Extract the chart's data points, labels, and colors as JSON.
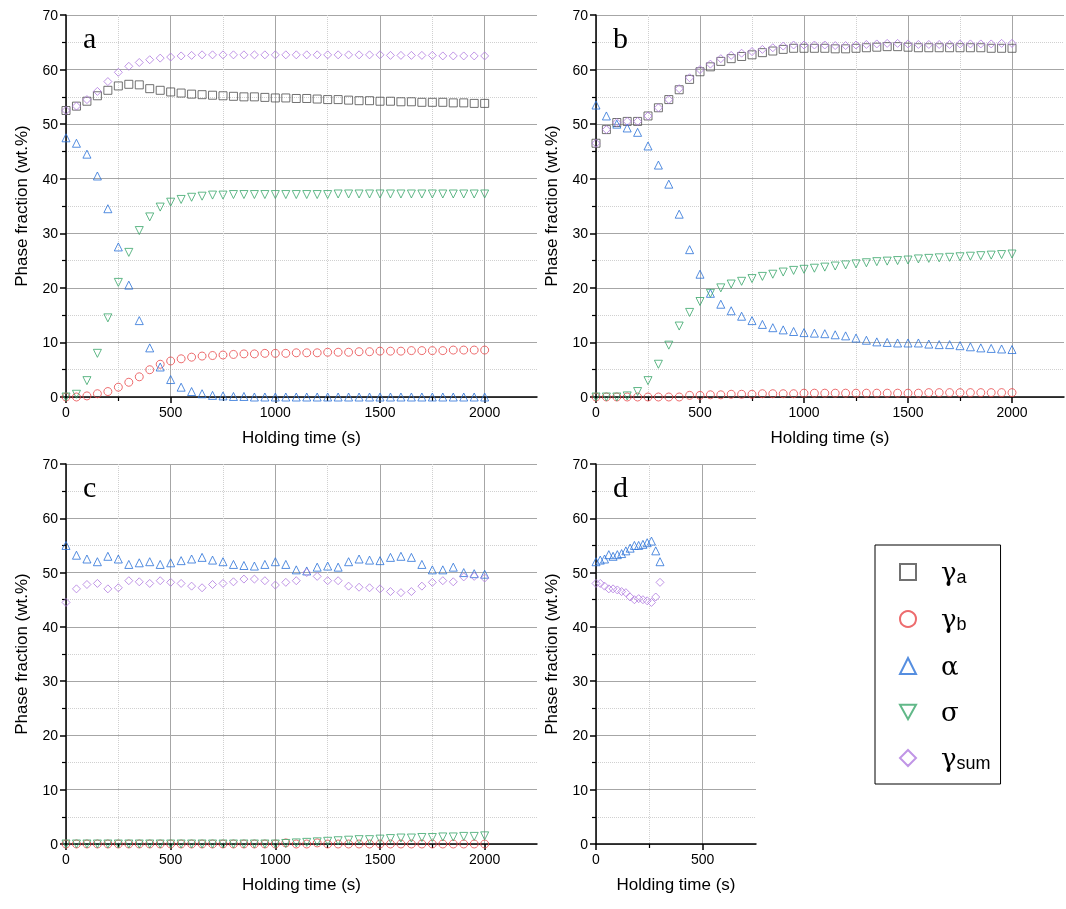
{
  "chart_data": [
    {
      "type": "scatter",
      "title": "a",
      "xlabel": "Holding time (s)",
      "ylabel": "Phase fraction (wt.%)",
      "xlim": [
        0,
        2250
      ],
      "xticks": [
        0,
        500,
        1000,
        1500,
        2000
      ],
      "ylim": [
        0,
        70
      ],
      "yticks": [
        0,
        10,
        20,
        30,
        40,
        50,
        60,
        70
      ],
      "grid": true,
      "legend": "bottom right",
      "x": [
        0,
        50,
        100,
        150,
        200,
        250,
        300,
        350,
        400,
        450,
        500,
        550,
        600,
        650,
        700,
        750,
        800,
        850,
        900,
        950,
        1000,
        1050,
        1100,
        1150,
        1200,
        1250,
        1300,
        1350,
        1400,
        1450,
        1500,
        1550,
        1600,
        1650,
        1700,
        1750,
        1800,
        1850,
        1900,
        1950,
        2000
      ],
      "series": [
        {
          "name": "γ$_{a}$",
          "color": "#4d4d4d",
          "marker": "square",
          "values": [
            52.5,
            53.3,
            54.2,
            55.2,
            56.2,
            57.0,
            57.3,
            57.2,
            56.5,
            56.2,
            55.9,
            55.7,
            55.5,
            55.4,
            55.3,
            55.2,
            55.1,
            55.0,
            55.0,
            54.9,
            54.8,
            54.8,
            54.7,
            54.7,
            54.6,
            54.5,
            54.5,
            54.4,
            54.3,
            54.3,
            54.2,
            54.2,
            54.1,
            54.1,
            54.0,
            54.0,
            54.0,
            53.9,
            53.9,
            53.8,
            53.8
          ]
        },
        {
          "name": "γ$_{b}$",
          "color": "#e8474a",
          "marker": "circle",
          "values": [
            0,
            0,
            0.2,
            0.6,
            1.0,
            1.8,
            2.7,
            3.7,
            5.0,
            6.0,
            6.6,
            7.0,
            7.3,
            7.5,
            7.6,
            7.7,
            7.8,
            7.9,
            7.9,
            8.0,
            8.0,
            8.0,
            8.1,
            8.1,
            8.1,
            8.2,
            8.2,
            8.2,
            8.3,
            8.3,
            8.4,
            8.4,
            8.4,
            8.5,
            8.5,
            8.5,
            8.5,
            8.6,
            8.6,
            8.6,
            8.6
          ]
        },
        {
          "name": "α",
          "color": "#2b72d8",
          "marker": "triangle",
          "values": [
            47.5,
            46.5,
            44.5,
            40.5,
            34.5,
            27.5,
            20.5,
            14,
            9,
            5.5,
            3.2,
            1.8,
            1.0,
            0.6,
            0.3,
            0.2,
            0.1,
            0.1,
            0,
            0,
            0,
            0,
            0,
            0,
            0,
            0,
            0,
            0,
            0,
            0,
            0,
            0,
            0,
            0,
            0,
            0,
            0,
            0,
            0,
            0,
            0
          ]
        },
        {
          "name": "σ",
          "color": "#3aa66a",
          "marker": "triangle-down",
          "values": [
            0,
            0.5,
            3,
            8,
            14.5,
            21,
            26.5,
            30.5,
            33,
            34.8,
            35.7,
            36.2,
            36.6,
            36.8,
            37.0,
            37.0,
            37.1,
            37.1,
            37.1,
            37.1,
            37.1,
            37.1,
            37.1,
            37.1,
            37.1,
            37.1,
            37.2,
            37.2,
            37.2,
            37.2,
            37.2,
            37.2,
            37.2,
            37.2,
            37.2,
            37.2,
            37.2,
            37.2,
            37.2,
            37.2,
            37.2
          ]
        },
        {
          "name": "γ$_{sum}$",
          "color": "#b07be0",
          "marker": "diamond",
          "values": [
            52.5,
            53.3,
            54.5,
            56,
            57.8,
            59.5,
            60.6,
            61.3,
            61.8,
            62.1,
            62.3,
            62.5,
            62.6,
            62.7,
            62.7,
            62.7,
            62.7,
            62.7,
            62.7,
            62.7,
            62.7,
            62.7,
            62.7,
            62.7,
            62.7,
            62.7,
            62.7,
            62.7,
            62.7,
            62.7,
            62.7,
            62.6,
            62.6,
            62.6,
            62.6,
            62.6,
            62.5,
            62.5,
            62.5,
            62.5,
            62.5
          ]
        }
      ]
    },
    {
      "type": "scatter",
      "title": "b",
      "xlabel": "Holding time (s)",
      "ylabel": "Phase fraction (wt.%)",
      "xlim": [
        0,
        2250
      ],
      "xticks": [
        0,
        500,
        1000,
        1500,
        2000
      ],
      "ylim": [
        0,
        70
      ],
      "yticks": [
        0,
        10,
        20,
        30,
        40,
        50,
        60,
        70
      ],
      "grid": true,
      "x": [
        0,
        50,
        100,
        150,
        200,
        250,
        300,
        350,
        400,
        450,
        500,
        550,
        600,
        650,
        700,
        750,
        800,
        850,
        900,
        950,
        1000,
        1050,
        1100,
        1150,
        1200,
        1250,
        1300,
        1350,
        1400,
        1450,
        1500,
        1550,
        1600,
        1650,
        1700,
        1750,
        1800,
        1850,
        1900,
        1950,
        2000
      ],
      "series": [
        {
          "color": "#4d4d4d",
          "marker": "square",
          "values": [
            46.5,
            49,
            50.3,
            50.5,
            50.5,
            51.5,
            53,
            54.5,
            56.3,
            58.2,
            59.6,
            60.5,
            61.5,
            62.0,
            62.4,
            62.7,
            63.1,
            63.4,
            63.7,
            63.9,
            63.9,
            63.9,
            63.9,
            63.8,
            63.8,
            63.9,
            64.0,
            64.1,
            64.2,
            64.2,
            64.1,
            64.0,
            64.0,
            64.0,
            64.0,
            64.0,
            64.0,
            64.0,
            63.9,
            63.9,
            63.9
          ]
        },
        {
          "color": "#e8474a",
          "marker": "circle",
          "values": [
            0,
            0,
            0,
            0,
            0,
            0,
            0,
            0,
            0,
            0.3,
            0.3,
            0.4,
            0.4,
            0.5,
            0.5,
            0.5,
            0.6,
            0.6,
            0.6,
            0.6,
            0.7,
            0.7,
            0.7,
            0.7,
            0.7,
            0.7,
            0.7,
            0.7,
            0.7,
            0.7,
            0.7,
            0.7,
            0.8,
            0.8,
            0.8,
            0.8,
            0.8,
            0.8,
            0.8,
            0.8,
            0.8
          ]
        },
        {
          "color": "#2b72d8",
          "marker": "triangle",
          "values": [
            53.5,
            51.5,
            50,
            49.3,
            48.5,
            46,
            42.5,
            39,
            33.5,
            27,
            22.5,
            19,
            17,
            15.8,
            14.8,
            14,
            13.3,
            12.7,
            12.3,
            12,
            11.8,
            11.7,
            11.6,
            11.4,
            11.2,
            10.8,
            10.4,
            10.1,
            10.0,
            9.9,
            9.9,
            9.9,
            9.7,
            9.6,
            9.6,
            9.4,
            9.2,
            9.0,
            8.9,
            8.8,
            8.7
          ]
        },
        {
          "color": "#3aa66a",
          "marker": "triangle-down",
          "values": [
            0,
            0,
            0,
            0.2,
            1,
            3,
            6,
            9.5,
            13,
            15.5,
            17.5,
            19,
            20,
            20.7,
            21.2,
            21.7,
            22.1,
            22.5,
            22.9,
            23.2,
            23.4,
            23.6,
            23.8,
            24,
            24.2,
            24.4,
            24.6,
            24.8,
            24.9,
            25,
            25.1,
            25.3,
            25.4,
            25.5,
            25.6,
            25.7,
            25.8,
            25.9,
            26,
            26.1,
            26.2
          ]
        },
        {
          "color": "#b07be0",
          "marker": "diamond",
          "values": [
            46.5,
            49,
            50.3,
            50.5,
            50.5,
            51.5,
            53,
            54.5,
            56.5,
            58.5,
            60,
            61,
            62,
            62.6,
            63,
            63.3,
            63.7,
            64,
            64.3,
            64.5,
            64.5,
            64.5,
            64.5,
            64.4,
            64.4,
            64.5,
            64.6,
            64.7,
            64.8,
            64.8,
            64.7,
            64.6,
            64.6,
            64.6,
            64.6,
            64.7,
            64.7,
            64.7,
            64.7,
            64.8,
            64.8
          ]
        }
      ]
    },
    {
      "type": "scatter",
      "title": "c",
      "xlabel": "Holding time (s)",
      "ylabel": "Phase fraction (wt.%)",
      "xlim": [
        0,
        2250
      ],
      "xticks": [
        0,
        500,
        1000,
        1500,
        2000
      ],
      "ylim": [
        0,
        70
      ],
      "yticks": [
        0,
        10,
        20,
        30,
        40,
        50,
        60,
        70
      ],
      "grid": true,
      "x": [
        0,
        50,
        100,
        150,
        200,
        250,
        300,
        350,
        400,
        450,
        500,
        550,
        600,
        650,
        700,
        750,
        800,
        850,
        900,
        950,
        1000,
        1050,
        1100,
        1150,
        1200,
        1250,
        1300,
        1350,
        1400,
        1450,
        1500,
        1550,
        1600,
        1650,
        1700,
        1750,
        1800,
        1850,
        1900,
        1950,
        2000
      ],
      "series": [
        {
          "color": "#e8474a",
          "marker": "circle",
          "values": [
            0,
            0,
            0,
            0,
            0,
            0,
            0,
            0,
            0,
            0,
            0,
            0,
            0,
            0,
            0,
            0,
            0,
            0,
            0,
            0,
            0,
            0.2,
            0,
            0,
            0.2,
            0,
            0,
            0,
            0,
            0,
            0,
            0,
            0,
            0,
            0,
            0,
            0,
            0,
            0,
            0,
            0
          ]
        },
        {
          "color": "#3aa66a",
          "marker": "triangle-down",
          "values": [
            0,
            0,
            0,
            0,
            0,
            0,
            0,
            0,
            0,
            0,
            0,
            0,
            0,
            0,
            0,
            0,
            0,
            0,
            0,
            0,
            0,
            0.1,
            0.2,
            0.3,
            0.4,
            0.5,
            0.6,
            0.7,
            0.8,
            0.8,
            0.9,
            1.0,
            1.1,
            1.1,
            1.2,
            1.2,
            1.3,
            1.3,
            1.4,
            1.4,
            1.5
          ]
        },
        {
          "color": "#2b72d8",
          "marker": "triangle",
          "values": [
            55,
            53.2,
            52.5,
            52,
            53,
            52.5,
            51.5,
            51.8,
            52,
            51.5,
            51.8,
            52.2,
            52.5,
            52.8,
            52.3,
            52,
            51.5,
            51.3,
            51.2,
            51.5,
            52,
            51.5,
            50.5,
            50.3,
            51,
            51.2,
            51,
            52,
            52.5,
            52.3,
            52.2,
            52.8,
            53,
            52.8,
            51.5,
            50.5,
            50.5,
            51,
            50,
            49.8,
            49.7
          ]
        },
        {
          "color": "#b07be0",
          "marker": "diamond",
          "values": [
            44.5,
            47,
            47.8,
            48,
            47,
            47.2,
            48.5,
            48.3,
            48,
            48.5,
            48.2,
            48,
            47.5,
            47.2,
            47.8,
            48,
            48.3,
            48.8,
            48.8,
            48.5,
            47.7,
            48.2,
            48.5,
            50,
            49.3,
            48.5,
            48.5,
            47.5,
            47.3,
            47.2,
            47,
            46.5,
            46.3,
            46.5,
            47.5,
            48.2,
            48.5,
            48.3,
            49.2,
            49.3,
            49
          ]
        }
      ]
    },
    {
      "type": "scatter",
      "title": "d",
      "xlabel": "Holding time (s)",
      "ylabel": "Phase fraction (wt.%)",
      "xlim": [
        0,
        750
      ],
      "xticks": [
        0,
        500
      ],
      "ylim": [
        0,
        70
      ],
      "yticks": [
        0,
        10,
        20,
        30,
        40,
        50,
        60,
        70
      ],
      "grid": true,
      "x": [
        0,
        20,
        40,
        60,
        80,
        100,
        120,
        140,
        160,
        180,
        200,
        220,
        240,
        260,
        280,
        300
      ],
      "series": [
        {
          "color": "#2b72d8",
          "marker": "triangle",
          "values": [
            52,
            52.3,
            52.5,
            53.3,
            53,
            53.3,
            53.5,
            54,
            54.5,
            55,
            55,
            55.2,
            55.5,
            55.8,
            54,
            52
          ]
        },
        {
          "color": "#b07be0",
          "marker": "diamond",
          "values": [
            48,
            48,
            47.5,
            47,
            47,
            46.8,
            46.5,
            46.3,
            45.5,
            45,
            45.2,
            45,
            44.8,
            44.5,
            45.5,
            48.2
          ]
        }
      ]
    }
  ]
}
